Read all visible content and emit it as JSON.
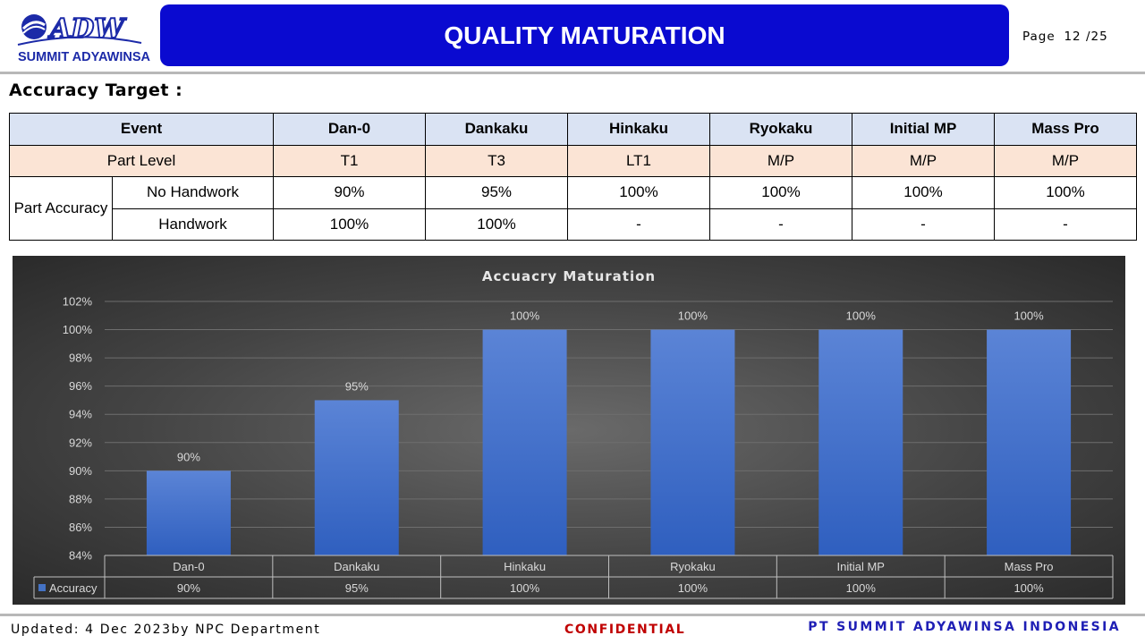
{
  "header": {
    "logo_mark": "ADW",
    "logo_text": "SUMMIT ADYAWINSA",
    "title": "QUALITY MATURATION",
    "page_label": "Page",
    "page_number": "12 /25"
  },
  "section_title": "Accuracy Target :",
  "table": {
    "headers": [
      "Event",
      "Dan-0",
      "Dankaku",
      "Hinkaku",
      "Ryokaku",
      "Initial MP",
      "Mass Pro"
    ],
    "part_level_label": "Part Level",
    "part_level_values": [
      "T1",
      "T3",
      "LT1",
      "M/P",
      "M/P",
      "M/P"
    ],
    "accuracy_label": "Part Accuracy",
    "rows": [
      {
        "label": "No Handwork",
        "values": [
          "90%",
          "95%",
          "100%",
          "100%",
          "100%",
          "100%"
        ]
      },
      {
        "label": "Handwork",
        "values": [
          "100%",
          "100%",
          "-",
          "-",
          "-",
          "-"
        ]
      }
    ]
  },
  "chart_data": {
    "type": "bar",
    "title": "Accuacry  Maturation",
    "categories": [
      "Dan-0",
      "Dankaku",
      "Hinkaku",
      "Ryokaku",
      "Initial MP",
      "Mass Pro"
    ],
    "series": [
      {
        "name": "Accuracy",
        "values": [
          90,
          95,
          100,
          100,
          100,
          100
        ],
        "labels": [
          "90%",
          "95%",
          "100%",
          "100%",
          "100%",
          "100%"
        ]
      }
    ],
    "ylim": [
      84,
      102
    ],
    "yticks": [
      "84%",
      "86%",
      "88%",
      "90%",
      "92%",
      "94%",
      "96%",
      "98%",
      "100%",
      "102%"
    ],
    "grid": true,
    "data_table": true,
    "colors": {
      "bar": "#4472c4",
      "bar_dark": "#2e5cb8",
      "text": "#d9d9d9"
    }
  },
  "footer": {
    "updated": "Updated: 4 Dec 2023by NPC Department",
    "confidential": "CONFIDENTIAL",
    "company": "PT SUMMIT ADYAWINSA INDONESIA"
  }
}
